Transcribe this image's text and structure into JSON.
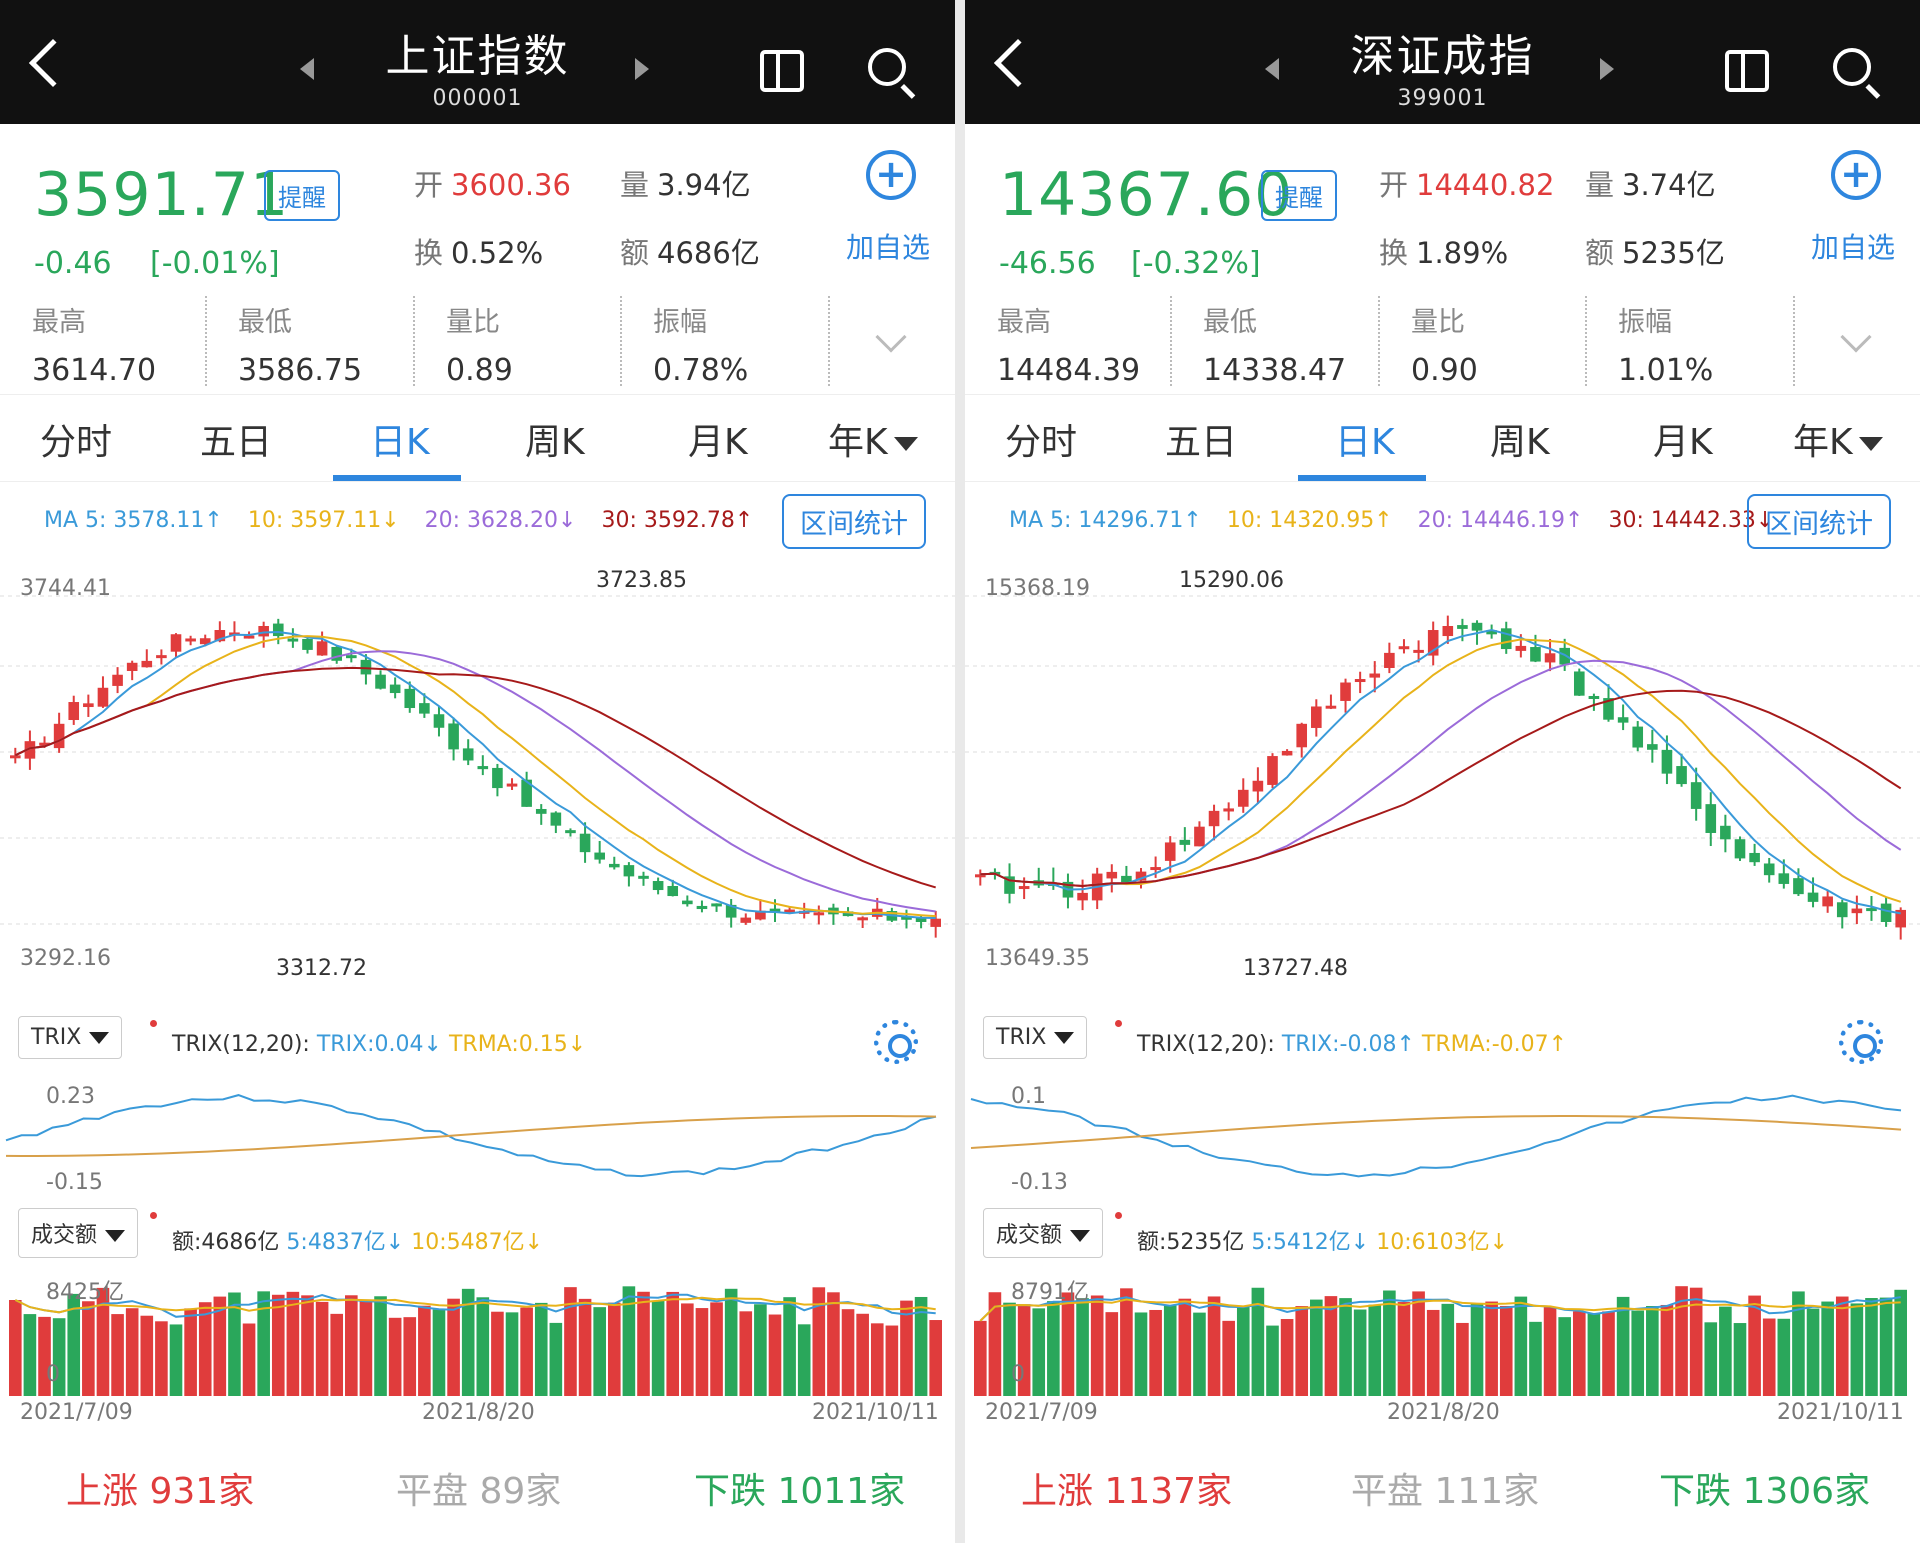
{
  "colors": {
    "up": "#e03c3c",
    "down": "#2aa75b",
    "accent": "#2e86de",
    "ma5": "#3a9ad9",
    "ma10": "#e8b31a",
    "ma20": "#9b6bd9",
    "ma30": "#a61a1a"
  },
  "panels": [
    {
      "title": "上证指数",
      "code": "000001",
      "price": "3591.71",
      "alert_label": "提醒",
      "change": "-0.46",
      "change_pct": "[-0.01%]",
      "open_label": "开",
      "open": "3600.36",
      "volume_label": "量",
      "volume": "3.94亿",
      "turnover_label": "换",
      "turnover": "0.52%",
      "amount_label": "额",
      "amount": "4686亿",
      "add_label": "加自选",
      "stats": [
        {
          "label": "最高",
          "value": "3614.70"
        },
        {
          "label": "最低",
          "value": "3586.75"
        },
        {
          "label": "量比",
          "value": "0.89"
        },
        {
          "label": "振幅",
          "value": "0.78%"
        }
      ],
      "tabs": [
        "分时",
        "五日",
        "日K",
        "周K",
        "月K",
        "年K"
      ],
      "active_tab": "日K",
      "ma": {
        "ma5": "MA 5: 3578.11↑",
        "ma10": "10: 3597.11↓",
        "ma20": "20: 3628.20↓",
        "ma30": "30: 3592.78↑"
      },
      "range_button": "区间统计",
      "kchart": {
        "axis_top": "3744.41",
        "axis_bottom": "3292.16",
        "high_label": "3723.85",
        "low_label": "3312.72"
      },
      "trix": {
        "selector": "TRIX",
        "params": "TRIX(12,20):",
        "trix": "TRIX:0.04↓",
        "trma": "TRMA:0.15↓",
        "axis_top": "0.23",
        "axis_bottom": "-0.15"
      },
      "vol": {
        "selector": "成交额",
        "amount": "额:4686亿",
        "ma5": "5:4837亿↓",
        "ma10": "10:5487亿↓",
        "axis_top": "8425亿",
        "axis_bottom": "0"
      },
      "dates": [
        "2021/7/09",
        "2021/8/20",
        "2021/10/11"
      ],
      "footer": {
        "up_label": "上涨",
        "up": "931家",
        "flat_label": "平盘",
        "flat": "89家",
        "down_label": "下跌",
        "down": "1011家"
      }
    },
    {
      "title": "深证成指",
      "code": "399001",
      "price": "14367.60",
      "alert_label": "提醒",
      "change": "-46.56",
      "change_pct": "[-0.32%]",
      "open_label": "开",
      "open": "14440.82",
      "volume_label": "量",
      "volume": "3.74亿",
      "turnover_label": "换",
      "turnover": "1.89%",
      "amount_label": "额",
      "amount": "5235亿",
      "add_label": "加自选",
      "stats": [
        {
          "label": "最高",
          "value": "14484.39"
        },
        {
          "label": "最低",
          "value": "14338.47"
        },
        {
          "label": "量比",
          "value": "0.90"
        },
        {
          "label": "振幅",
          "value": "1.01%"
        }
      ],
      "tabs": [
        "分时",
        "五日",
        "日K",
        "周K",
        "月K",
        "年K"
      ],
      "active_tab": "日K",
      "ma": {
        "ma5": "MA 5: 14296.71↑",
        "ma10": "10: 14320.95↑",
        "ma20": "20: 14446.19↑",
        "ma30": "30: 14442.33↓"
      },
      "range_button": "区间统计",
      "kchart": {
        "axis_top": "15368.19",
        "axis_bottom": "13649.35",
        "high_label": "15290.06",
        "low_label": "13727.48"
      },
      "trix": {
        "selector": "TRIX",
        "params": "TRIX(12,20):",
        "trix": "TRIX:-0.08↑",
        "trma": "TRMA:-0.07↑",
        "axis_top": "0.1",
        "axis_bottom": "-0.13"
      },
      "vol": {
        "selector": "成交额",
        "amount": "额:5235亿",
        "ma5": "5:5412亿↓",
        "ma10": "10:6103亿↓",
        "axis_top": "8791亿",
        "axis_bottom": "0"
      },
      "dates": [
        "2021/7/09",
        "2021/8/20",
        "2021/10/11"
      ],
      "footer": {
        "up_label": "上涨",
        "up": "1137家",
        "flat_label": "平盘",
        "flat": "111家",
        "down_label": "下跌",
        "down": "1306家"
      }
    }
  ]
}
